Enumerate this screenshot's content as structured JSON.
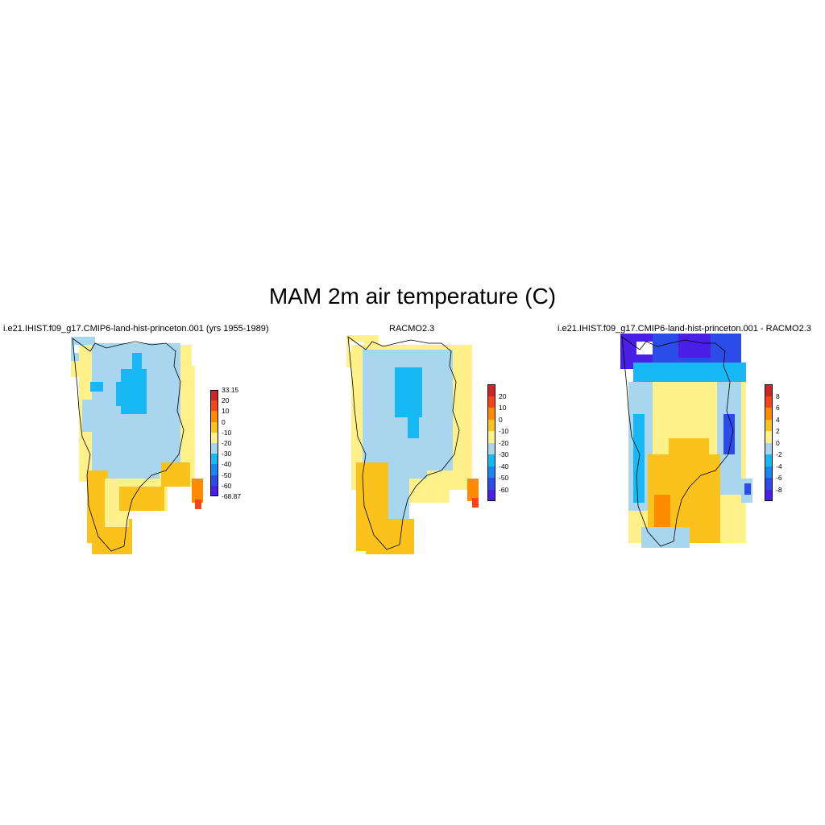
{
  "title": "MAM 2m air temperature (C)",
  "panels": [
    {
      "id": "model",
      "title": "i.e21.IHIST.f09_g17.CMIP6-land-hist-princeton.001 (yrs 1955-1989)",
      "colorbar": {
        "colors": [
          "#4a1fe6",
          "#2b4ce8",
          "#1a86f0",
          "#18b8f5",
          "#a8d6ee",
          "#fff08a",
          "#fbc21c",
          "#ff8b00",
          "#f44418",
          "#cc2626"
        ],
        "labels": [
          "-68.87",
          "-60",
          "-50",
          "-40",
          "-30",
          "-20",
          "-10",
          "0",
          "10",
          "20",
          "33.15"
        ]
      }
    },
    {
      "id": "racmo",
      "title": "RACMO2.3",
      "colorbar": {
        "colors": [
          "#4a1fe6",
          "#2b4ce8",
          "#1a86f0",
          "#18b8f5",
          "#a8d6ee",
          "#fff08a",
          "#fbc21c",
          "#ff8b00",
          "#f44418",
          "#cc2626"
        ],
        "labels": [
          "-60",
          "-50",
          "-40",
          "-30",
          "-20",
          "-10",
          "0",
          "10",
          "20"
        ]
      }
    },
    {
      "id": "diff",
      "title": "i.e21.IHIST.f09_g17.CMIP6-land-hist-princeton.001 - RACMO2.3",
      "colorbar": {
        "colors": [
          "#4a1fe6",
          "#2b4ce8",
          "#1a86f0",
          "#18b8f5",
          "#a8d6ee",
          "#fff08a",
          "#fbc21c",
          "#ff8b00",
          "#f44418",
          "#cc2626"
        ],
        "labels": [
          "-8",
          "-6",
          "-4",
          "-2",
          "0",
          "2",
          "4",
          "6",
          "8"
        ]
      }
    }
  ]
}
